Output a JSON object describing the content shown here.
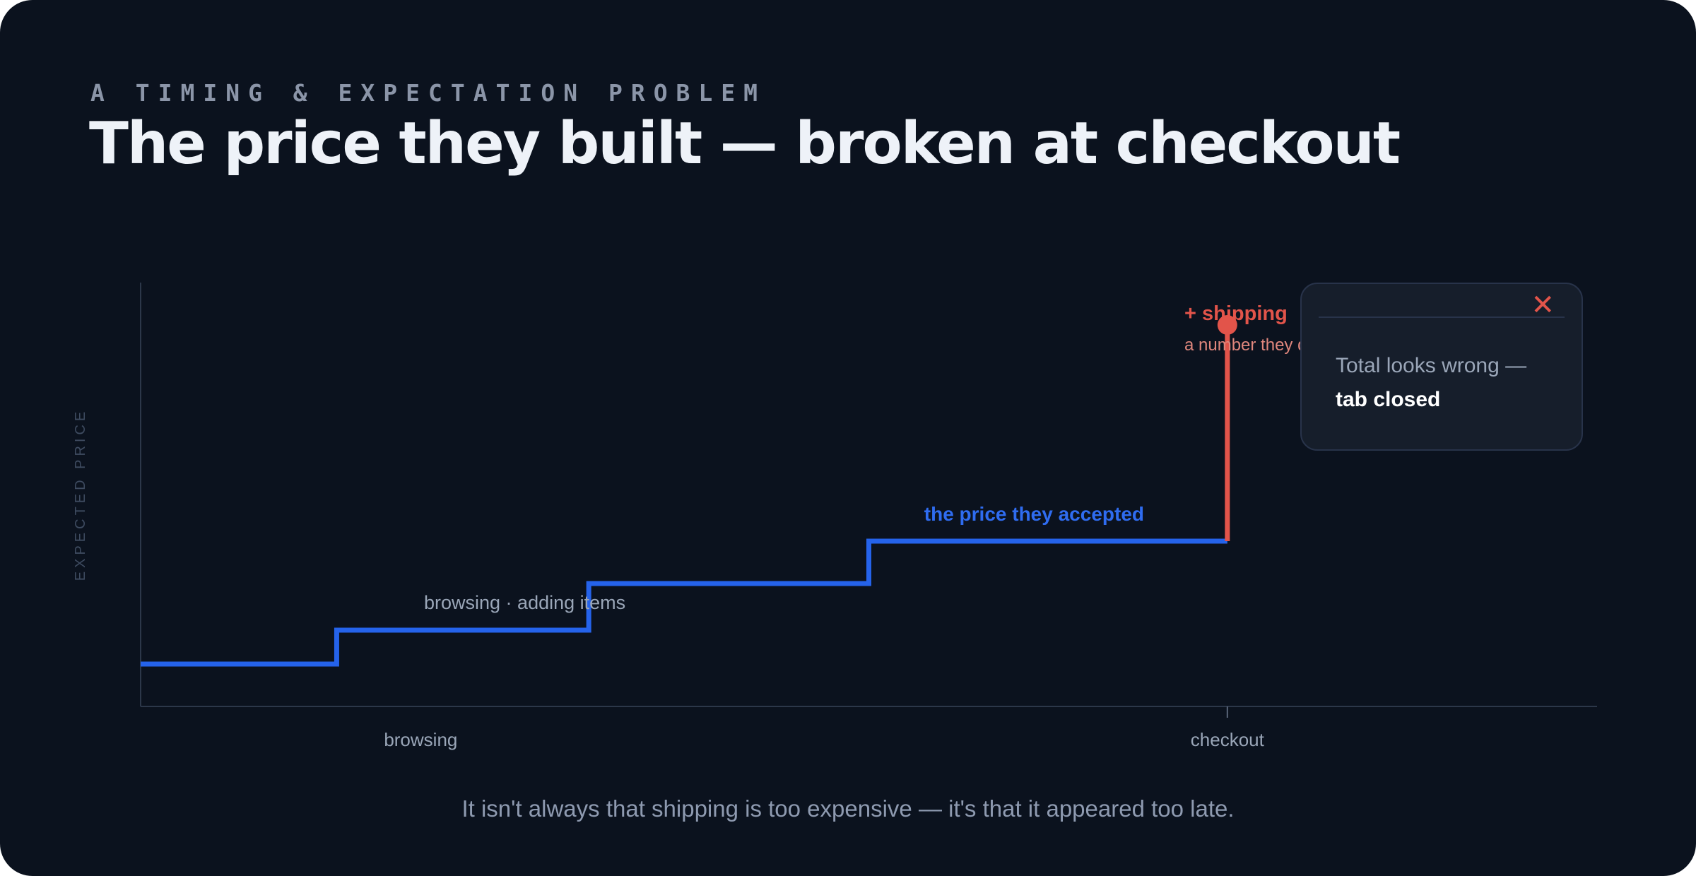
{
  "header": {
    "eyebrow": "A TIMING & EXPECTATION PROBLEM",
    "title": "The price they built — broken at checkout"
  },
  "chart_data": {
    "type": "line",
    "ylabel": "EXPECTED PRICE",
    "x_tick_labels": [
      "browsing",
      "checkout"
    ],
    "x_tick_positions": [
      0.5,
      1.94
    ],
    "xlim": [
      0,
      2.6
    ],
    "ylim": [
      0,
      10
    ],
    "series": [
      {
        "role": "accepted-price",
        "color": "#2563eb",
        "x": [
          0,
          0.35,
          0.35,
          0.8,
          0.8,
          1.3,
          1.3,
          1.8,
          1.8,
          1.94
        ],
        "y": [
          1.0,
          1.0,
          1.8,
          1.8,
          2.9,
          2.9,
          3.9,
          3.9,
          3.9,
          3.9
        ]
      },
      {
        "role": "shipping-jump",
        "color": "#e2544a",
        "x": [
          1.94,
          1.94
        ],
        "y": [
          3.9,
          9.0
        ]
      }
    ],
    "annotations": {
      "browsing": "browsing · adding items",
      "accepted": "the price they accepted",
      "shipping": "+ shipping",
      "shipping_sub": "a number they didn't plan for"
    }
  },
  "popup": {
    "close_icon": "close-icon",
    "text": "Total looks wrong —",
    "bold": "tab closed"
  },
  "footer": "It isn't always that shipping is too expensive — it's that it appeared too late."
}
